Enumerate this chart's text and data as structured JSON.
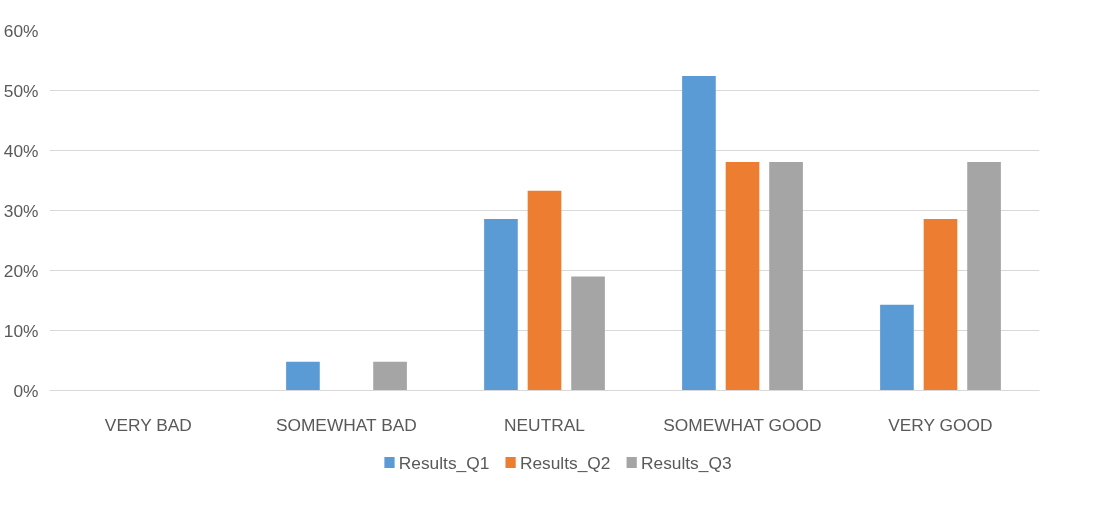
{
  "chart_data": {
    "type": "bar",
    "categories": [
      "VERY BAD",
      "SOMEWHAT BAD",
      "NEUTRAL",
      "SOMEWHAT GOOD",
      "VERY GOOD"
    ],
    "series": [
      {
        "name": "Results_Q1",
        "color": "#5b9bd5",
        "values": [
          0,
          4.8,
          28.6,
          52.4,
          14.3
        ]
      },
      {
        "name": "Results_Q2",
        "color": "#ed7d31",
        "values": [
          0,
          0,
          33.3,
          38.1,
          28.6
        ]
      },
      {
        "name": "Results_Q3",
        "color": "#a5a5a5",
        "values": [
          0,
          4.8,
          19.0,
          38.1,
          38.1
        ]
      }
    ],
    "ylim": [
      0,
      60
    ],
    "yticks": [
      {
        "value": 0,
        "label": "0%"
      },
      {
        "value": 10,
        "label": "10%"
      },
      {
        "value": 20,
        "label": "20%"
      },
      {
        "value": 30,
        "label": "30%"
      },
      {
        "value": 40,
        "label": "40%"
      },
      {
        "value": 50,
        "label": "50%"
      },
      {
        "value": 60,
        "label": "60%"
      }
    ],
    "grid": "y",
    "legend": "bottom"
  }
}
